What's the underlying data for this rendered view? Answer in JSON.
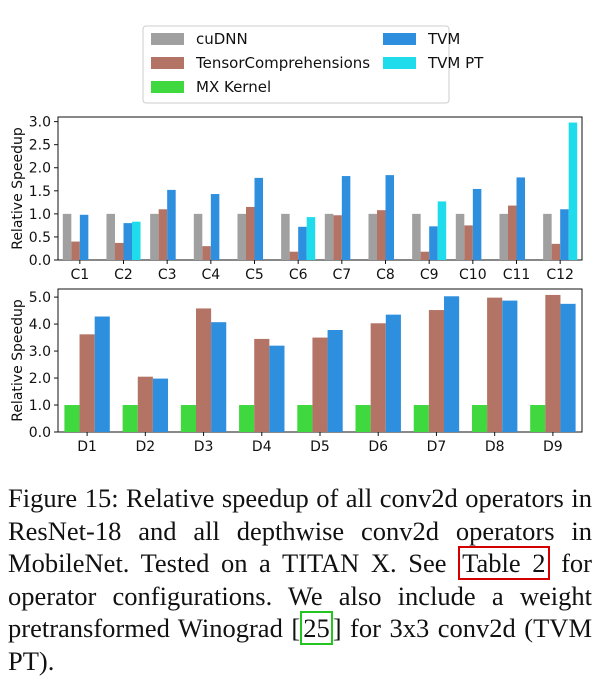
{
  "colors": {
    "cuDNN": "#a0a0a0",
    "TensorComprehensions": "#b37466",
    "MX Kernel": "#3fd83f",
    "TVM": "#2f8fdf",
    "TVM PT": "#1fdcec"
  },
  "legend": {
    "placement": "top-center",
    "items": [
      {
        "name": "cuDNN",
        "color": "#a0a0a0"
      },
      {
        "name": "TVM",
        "color": "#2f8fdf"
      },
      {
        "name": "TensorComprehensions",
        "color": "#b37466"
      },
      {
        "name": "TVM PT",
        "color": "#1fdcec"
      },
      {
        "name": "MX Kernel",
        "color": "#3fd83f"
      }
    ]
  },
  "chart_data": [
    {
      "type": "bar",
      "title": "",
      "xlabel": "",
      "ylabel": "Relative Speedup",
      "ylim": [
        0,
        3.1
      ],
      "yticks": [
        "0.0",
        "0.5",
        "1.0",
        "1.5",
        "2.0",
        "2.5",
        "3.0"
      ],
      "grid": false,
      "categories": [
        "C1",
        "C2",
        "C3",
        "C4",
        "C5",
        "C6",
        "C7",
        "C8",
        "C9",
        "C10",
        "C11",
        "C12"
      ],
      "series": [
        {
          "name": "cuDNN",
          "values": [
            1.0,
            1.0,
            1.0,
            1.0,
            1.0,
            1.0,
            1.0,
            1.0,
            1.0,
            1.0,
            1.0,
            1.0
          ]
        },
        {
          "name": "TensorComprehensions",
          "values": [
            0.4,
            0.37,
            1.1,
            0.3,
            1.15,
            0.18,
            0.97,
            1.08,
            0.18,
            0.75,
            1.18,
            0.35
          ]
        },
        {
          "name": "TVM",
          "values": [
            0.98,
            0.8,
            1.52,
            1.43,
            1.78,
            0.72,
            1.82,
            1.84,
            0.73,
            1.54,
            1.79,
            1.1
          ]
        },
        {
          "name": "TVM PT",
          "values": [
            null,
            0.83,
            null,
            null,
            null,
            0.93,
            null,
            null,
            1.27,
            null,
            null,
            2.98
          ]
        }
      ]
    },
    {
      "type": "bar",
      "title": "",
      "xlabel": "",
      "ylabel": "Relative Speedup",
      "ylim": [
        0,
        5.3
      ],
      "yticks": [
        "0.0",
        "1.0",
        "2.0",
        "3.0",
        "4.0",
        "5.0"
      ],
      "grid": false,
      "categories": [
        "D1",
        "D2",
        "D3",
        "D4",
        "D5",
        "D6",
        "D7",
        "D8",
        "D9"
      ],
      "series": [
        {
          "name": "MX Kernel",
          "values": [
            1.0,
            1.0,
            1.0,
            1.0,
            1.0,
            1.0,
            1.0,
            1.0,
            1.0
          ]
        },
        {
          "name": "TensorComprehensions",
          "values": [
            3.62,
            2.05,
            4.58,
            3.45,
            3.5,
            4.03,
            4.52,
            4.98,
            5.08
          ]
        },
        {
          "name": "TVM",
          "values": [
            4.28,
            1.98,
            4.07,
            3.2,
            3.78,
            4.35,
            5.03,
            4.87,
            4.75
          ]
        }
      ]
    }
  ],
  "caption": {
    "part1": "Figure 15: Relative speedup of all conv2d operators in ResNet-18 and all depthwise conv2d operators in MobileNet. Tested on a TITAN X. See ",
    "table_ref": "Table 2",
    "part2": " for operator configurations. We also include a weight pretransformed Winograd [",
    "cite": "25",
    "part3": "] for 3x3 conv2d (TVM PT)."
  }
}
